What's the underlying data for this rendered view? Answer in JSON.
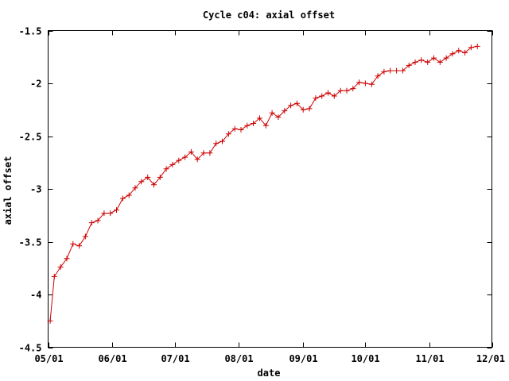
{
  "chart_data": {
    "type": "line",
    "title": "Cycle c04: axial offset",
    "xlabel": "date",
    "ylabel": "axial offset",
    "grid": false,
    "legend": "none",
    "xlim": [
      "2003-05-01",
      "2003-12-01"
    ],
    "ylim": [
      -4.5,
      -1.5
    ],
    "xticks": [
      {
        "label": "05/01",
        "date": "2003-05-01"
      },
      {
        "label": "06/01",
        "date": "2003-06-01"
      },
      {
        "label": "07/01",
        "date": "2003-07-01"
      },
      {
        "label": "08/01",
        "date": "2003-08-01"
      },
      {
        "label": "09/01",
        "date": "2003-09-01"
      },
      {
        "label": "10/01",
        "date": "2003-10-01"
      },
      {
        "label": "11/01",
        "date": "2003-11-01"
      },
      {
        "label": "12/01",
        "date": "2003-12-01"
      }
    ],
    "yticks": [
      {
        "label": "-1.5",
        "value": -1.5
      },
      {
        "label": "-2",
        "value": -2
      },
      {
        "label": "-2.5",
        "value": -2.5
      },
      {
        "label": "-3",
        "value": -3
      },
      {
        "label": "-3.5",
        "value": -3.5
      },
      {
        "label": "-4",
        "value": -4
      },
      {
        "label": "-4.5",
        "value": -4.5
      }
    ],
    "series": [
      {
        "color": "#cc0000",
        "marker": "plus",
        "points": [
          [
            "2003-05-02",
            -4.25
          ],
          [
            "2003-05-04",
            -3.83
          ],
          [
            "2003-05-07",
            -3.74
          ],
          [
            "2003-05-10",
            -3.66
          ],
          [
            "2003-05-13",
            -3.52
          ],
          [
            "2003-05-16",
            -3.54
          ],
          [
            "2003-05-19",
            -3.45
          ],
          [
            "2003-05-22",
            -3.32
          ],
          [
            "2003-05-25",
            -3.3
          ],
          [
            "2003-05-28",
            -3.23
          ],
          [
            "2003-05-31",
            -3.23
          ],
          [
            "2003-06-03",
            -3.2
          ],
          [
            "2003-06-06",
            -3.09
          ],
          [
            "2003-06-09",
            -3.06
          ],
          [
            "2003-06-12",
            -2.99
          ],
          [
            "2003-06-15",
            -2.93
          ],
          [
            "2003-06-18",
            -2.89
          ],
          [
            "2003-06-21",
            -2.96
          ],
          [
            "2003-06-24",
            -2.89
          ],
          [
            "2003-06-27",
            -2.81
          ],
          [
            "2003-06-30",
            -2.77
          ],
          [
            "2003-07-03",
            -2.73
          ],
          [
            "2003-07-06",
            -2.7
          ],
          [
            "2003-07-09",
            -2.65
          ],
          [
            "2003-07-12",
            -2.72
          ],
          [
            "2003-07-15",
            -2.66
          ],
          [
            "2003-07-18",
            -2.66
          ],
          [
            "2003-07-21",
            -2.57
          ],
          [
            "2003-07-24",
            -2.55
          ],
          [
            "2003-07-27",
            -2.48
          ],
          [
            "2003-07-30",
            -2.43
          ],
          [
            "2003-08-02",
            -2.44
          ],
          [
            "2003-08-05",
            -2.4
          ],
          [
            "2003-08-08",
            -2.38
          ],
          [
            "2003-08-11",
            -2.33
          ],
          [
            "2003-08-14",
            -2.4
          ],
          [
            "2003-08-17",
            -2.28
          ],
          [
            "2003-08-20",
            -2.32
          ],
          [
            "2003-08-23",
            -2.26
          ],
          [
            "2003-08-26",
            -2.21
          ],
          [
            "2003-08-29",
            -2.19
          ],
          [
            "2003-09-01",
            -2.25
          ],
          [
            "2003-09-04",
            -2.24
          ],
          [
            "2003-09-07",
            -2.14
          ],
          [
            "2003-09-10",
            -2.12
          ],
          [
            "2003-09-13",
            -2.09
          ],
          [
            "2003-09-16",
            -2.12
          ],
          [
            "2003-09-19",
            -2.07
          ],
          [
            "2003-09-22",
            -2.07
          ],
          [
            "2003-09-25",
            -2.05
          ],
          [
            "2003-09-28",
            -1.99
          ],
          [
            "2003-10-01",
            -2.0
          ],
          [
            "2003-10-04",
            -2.01
          ],
          [
            "2003-10-07",
            -1.93
          ],
          [
            "2003-10-10",
            -1.89
          ],
          [
            "2003-10-13",
            -1.88
          ],
          [
            "2003-10-16",
            -1.88
          ],
          [
            "2003-10-19",
            -1.88
          ],
          [
            "2003-10-22",
            -1.83
          ],
          [
            "2003-10-25",
            -1.8
          ],
          [
            "2003-10-28",
            -1.78
          ],
          [
            "2003-10-31",
            -1.8
          ],
          [
            "2003-11-03",
            -1.76
          ],
          [
            "2003-11-06",
            -1.8
          ],
          [
            "2003-11-09",
            -1.76
          ],
          [
            "2003-11-12",
            -1.72
          ],
          [
            "2003-11-15",
            -1.69
          ],
          [
            "2003-11-18",
            -1.71
          ],
          [
            "2003-11-21",
            -1.66
          ],
          [
            "2003-11-24",
            -1.65
          ]
        ]
      }
    ]
  }
}
